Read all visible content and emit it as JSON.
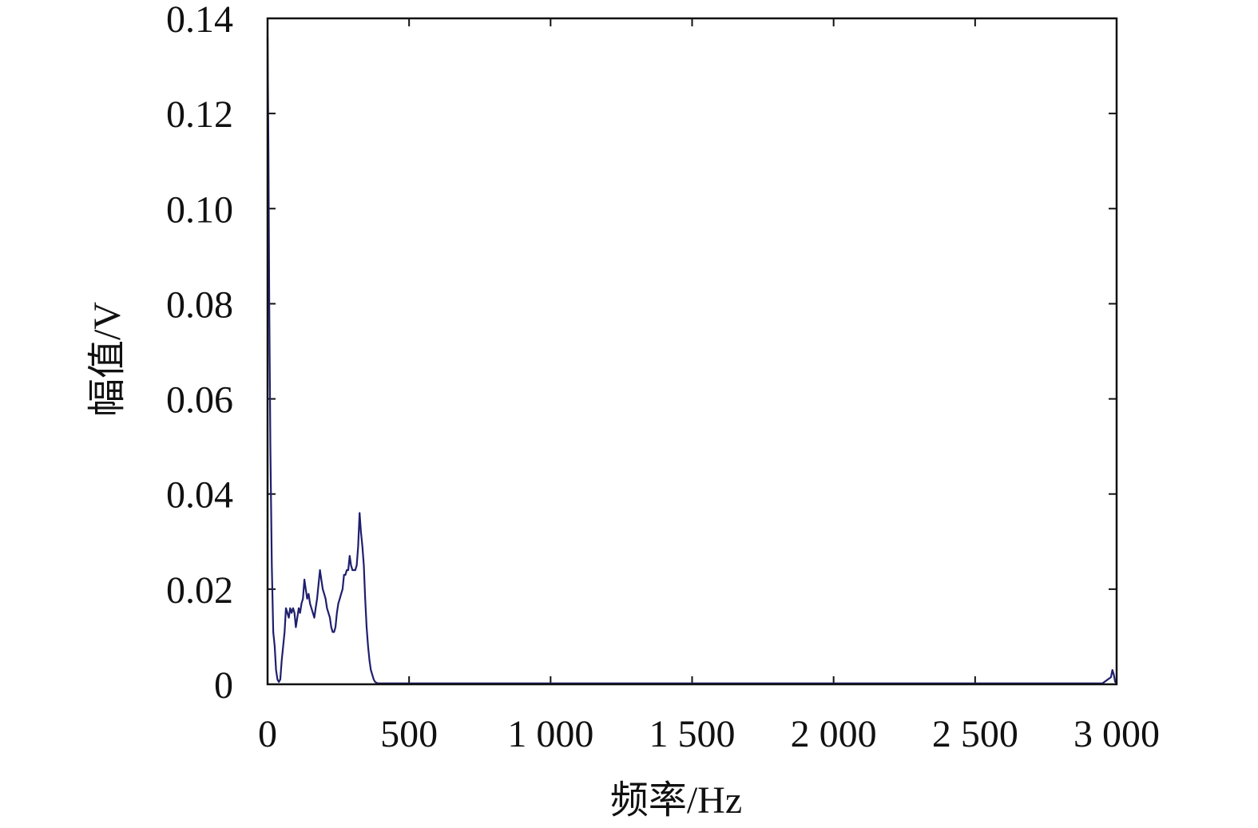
{
  "chart_data": {
    "type": "line",
    "title": "",
    "xlabel": "频率/Hz",
    "ylabel": "幅值/V",
    "xlim": [
      0,
      3000
    ],
    "ylim": [
      0,
      0.14
    ],
    "x_ticks": [
      0,
      500,
      1000,
      1500,
      2000,
      2500,
      3000
    ],
    "x_tick_labels": [
      "0",
      "500",
      "1 000",
      "1 500",
      "2 000",
      "2 500",
      "3 000"
    ],
    "y_ticks": [
      0,
      0.02,
      0.04,
      0.06,
      0.08,
      0.1,
      0.12,
      0.14
    ],
    "y_tick_labels": [
      "0",
      "0.02",
      "0.04",
      "0.06",
      "0.08",
      "0.10",
      "0.12",
      "0.14"
    ],
    "grid": false,
    "line_color": "#1f1f6e",
    "series": [
      {
        "x": [
          0,
          3,
          6,
          10,
          15,
          20,
          25,
          30,
          35,
          40,
          45,
          50,
          55,
          60,
          65,
          70,
          75,
          80,
          85,
          90,
          95,
          100,
          105,
          110,
          115,
          120,
          125,
          130,
          135,
          140,
          145,
          150,
          155,
          160,
          165,
          170,
          175,
          180,
          185,
          190,
          195,
          200,
          205,
          210,
          215,
          220,
          225,
          230,
          235,
          240,
          245,
          250,
          255,
          260,
          265,
          270,
          275,
          280,
          285,
          290,
          295,
          300,
          305,
          310,
          315,
          320,
          325,
          330,
          335,
          340,
          345,
          350,
          355,
          360,
          365,
          370,
          375,
          380,
          385,
          390,
          395,
          400,
          405,
          410,
          415,
          420,
          425,
          430,
          435,
          440,
          445,
          450,
          455,
          460,
          465,
          470,
          475,
          480,
          485,
          490,
          495,
          500,
          505,
          510,
          520,
          540,
          600,
          800,
          1000,
          1500,
          2000,
          2500,
          2950,
          2980,
          2985,
          2990,
          2995,
          3000
        ],
        "y": [
          0.136,
          0.112,
          0.08,
          0.05,
          0.025,
          0.011,
          0.008,
          0.003,
          0.001,
          0.0005,
          0.001,
          0.005,
          0.008,
          0.011,
          0.016,
          0.015,
          0.014,
          0.016,
          0.015,
          0.016,
          0.015,
          0.012,
          0.014,
          0.016,
          0.015,
          0.017,
          0.018,
          0.022,
          0.02,
          0.018,
          0.019,
          0.017,
          0.016,
          0.015,
          0.014,
          0.016,
          0.018,
          0.021,
          0.024,
          0.022,
          0.02,
          0.019,
          0.018,
          0.016,
          0.015,
          0.014,
          0.012,
          0.011,
          0.011,
          0.012,
          0.015,
          0.017,
          0.018,
          0.019,
          0.02,
          0.023,
          0.023,
          0.024,
          0.024,
          0.027,
          0.025,
          0.024,
          0.024,
          0.024,
          0.025,
          0.029,
          0.036,
          0.032,
          0.029,
          0.025,
          0.018,
          0.012,
          0.008,
          0.005,
          0.003,
          0.002,
          0.001,
          0.0005,
          0.0003,
          0.0002,
          0.0002,
          0.0002,
          0.0002,
          0.0002,
          0.0002,
          0.0002,
          0.0002,
          0.0002,
          0.0002,
          0.0002,
          0.0002,
          0.0002,
          0.0002,
          0.0002,
          0.0002,
          0.0002,
          0.0002,
          0.0002,
          0.0002,
          0.0002,
          0.0002,
          0.0002,
          0.0002,
          0.0002,
          0.0002,
          0.0002,
          0.0002,
          0.0002,
          0.0002,
          0.0002,
          0.0002,
          0.0002,
          0.0002,
          0.0015,
          0.003,
          0.002,
          0.0005,
          0.0002
        ]
      }
    ]
  }
}
